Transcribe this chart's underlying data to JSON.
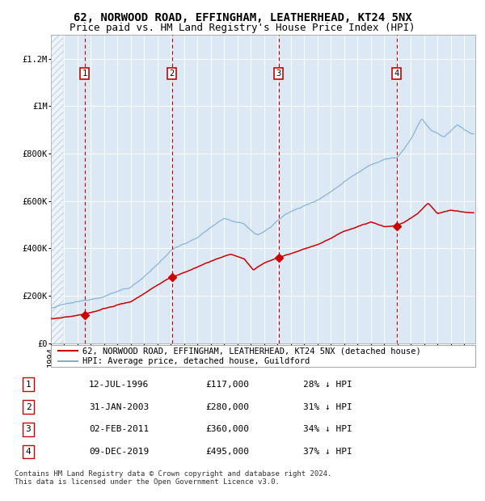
{
  "title": "62, NORWOOD ROAD, EFFINGHAM, LEATHERHEAD, KT24 5NX",
  "subtitle": "Price paid vs. HM Land Registry's House Price Index (HPI)",
  "ylim": [
    0,
    1300000
  ],
  "yticks": [
    0,
    200000,
    400000,
    600000,
    800000,
    1000000,
    1200000
  ],
  "ytick_labels": [
    "£0",
    "£200K",
    "£400K",
    "£600K",
    "£800K",
    "£1M",
    "£1.2M"
  ],
  "xlim_start": 1994.0,
  "xlim_end": 2025.83,
  "background_color": "#dce9f5",
  "grid_color": "#ffffff",
  "red_line_color": "#cc0000",
  "blue_line_color": "#7bafd4",
  "sale_dates": [
    1996.53,
    2003.08,
    2011.09,
    2019.94
  ],
  "sale_prices": [
    117000,
    280000,
    360000,
    495000
  ],
  "sale_labels": [
    "1",
    "2",
    "3",
    "4"
  ],
  "vline_color": "#cc0000",
  "marker_color": "#cc0000",
  "legend_entries": [
    "62, NORWOOD ROAD, EFFINGHAM, LEATHERHEAD, KT24 5NX (detached house)",
    "HPI: Average price, detached house, Guildford"
  ],
  "table_data": [
    [
      "1",
      "12-JUL-1996",
      "£117,000",
      "28% ↓ HPI"
    ],
    [
      "2",
      "31-JAN-2003",
      "£280,000",
      "31% ↓ HPI"
    ],
    [
      "3",
      "02-FEB-2011",
      "£360,000",
      "34% ↓ HPI"
    ],
    [
      "4",
      "09-DEC-2019",
      "£495,000",
      "37% ↓ HPI"
    ]
  ],
  "footnote": "Contains HM Land Registry data © Crown copyright and database right 2024.\nThis data is licensed under the Open Government Licence v3.0.",
  "title_fontsize": 10,
  "subtitle_fontsize": 9,
  "tick_fontsize": 7.5,
  "legend_fontsize": 7.5,
  "table_fontsize": 8,
  "footnote_fontsize": 6.5
}
